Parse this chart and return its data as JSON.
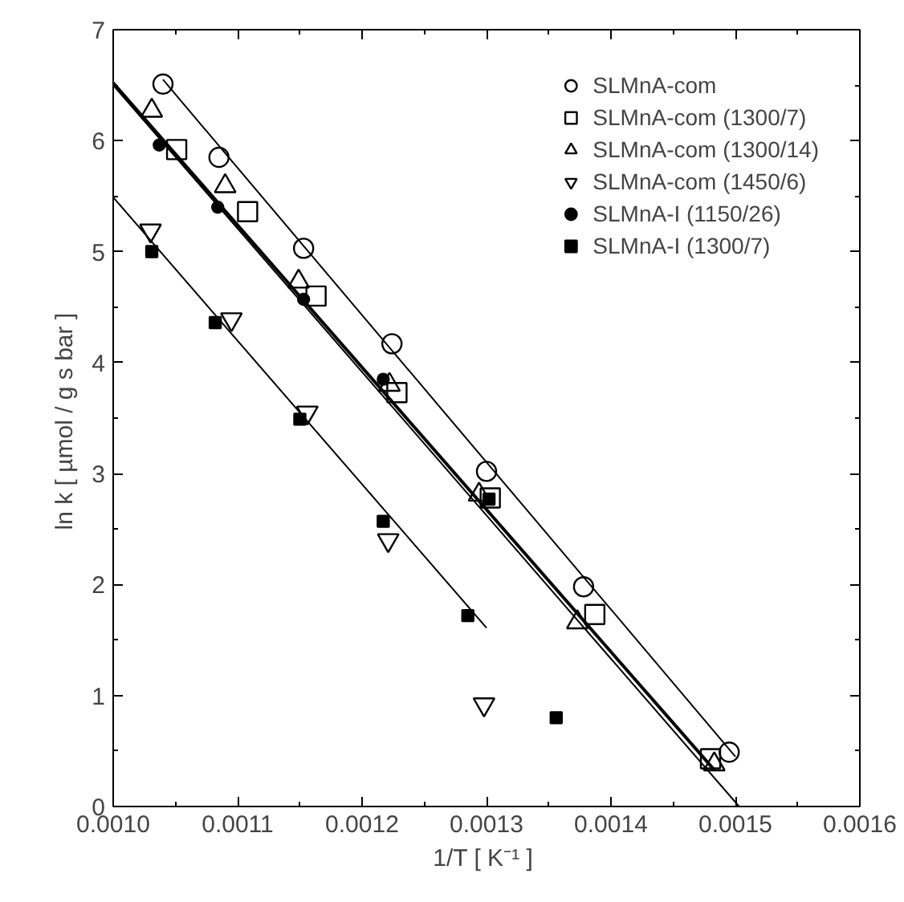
{
  "chart_data": {
    "type": "scatter",
    "xlabel": "1/T  [ K⁻¹ ]",
    "ylabel": "ln k  [ µmol / g s bar ]",
    "xlim": [
      0.001,
      0.0016
    ],
    "xticks": [
      {
        "value": 0.001,
        "label": "0.0010"
      },
      {
        "value": 0.0011,
        "label": "0.0011"
      },
      {
        "value": 0.0012,
        "label": "0.0012"
      },
      {
        "value": 0.0013,
        "label": "0.0013"
      },
      {
        "value": 0.0014,
        "label": "0.0014"
      },
      {
        "value": 0.0015,
        "label": "0.0015"
      },
      {
        "value": 0.0016,
        "label": "0.0016"
      }
    ],
    "ylim": [
      0,
      7
    ],
    "yticks": [
      0,
      1,
      2,
      3,
      4,
      5,
      6,
      7
    ],
    "grid": false,
    "legend": "top right",
    "series": [
      {
        "name": "SLMnA-com",
        "marker": "circle",
        "color": "#000000",
        "x": [
          0.00104,
          0.001085,
          0.001153,
          0.001224,
          0.0013,
          0.001378,
          0.001495
        ],
        "values": [
          6.51,
          5.85,
          5.03,
          4.17,
          3.02,
          1.98,
          0.49
        ]
      },
      {
        "name": "SLMnA-com (1300/7)",
        "marker": "square",
        "color": "#000000",
        "x": [
          0.001051,
          0.001108,
          0.001163,
          0.001228,
          0.001303,
          0.001387,
          0.00148
        ],
        "values": [
          5.92,
          5.36,
          4.6,
          3.73,
          2.78,
          1.73,
          0.43
        ]
      },
      {
        "name": "SLMnA-com (1300/14)",
        "marker": "triangle",
        "color": "#000000",
        "x": [
          0.001031,
          0.00109,
          0.001149,
          0.001222,
          0.001294,
          0.001373,
          0.001483
        ],
        "values": [
          6.27,
          5.59,
          4.73,
          3.8,
          2.81,
          1.66,
          0.38
        ]
      },
      {
        "name": "SLMnA-com (1450/6)",
        "marker": "triangle",
        "color": "#000000",
        "x": [
          0.00103,
          0.001095,
          0.001156,
          0.001221,
          0.001298
        ],
        "values": [
          5.19,
          4.39,
          3.55,
          2.4,
          0.92
        ]
      },
      {
        "name": "SLMnA-I (1150/26)",
        "marker": "circle",
        "color": "#000000",
        "x": [
          0.001037,
          0.001084,
          0.001153,
          0.001217
        ],
        "values": [
          5.96,
          5.4,
          4.57,
          3.85
        ]
      },
      {
        "name": "SLMnA-I (1300/7)",
        "marker": "square",
        "color": "#000000",
        "x": [
          0.001031,
          0.001082,
          0.00115,
          0.001217,
          0.001302,
          0.001285,
          0.001356
        ],
        "values": [
          5.0,
          4.36,
          3.49,
          2.57,
          2.77,
          1.72,
          0.8
        ]
      },
      {
        "type": "line",
        "color": "#000000",
        "x": [
          0.00104,
          0.0015
        ],
        "values": [
          6.55,
          0.45
        ]
      },
      {
        "type": "line",
        "color": "#000000",
        "x": [
          0.001,
          0.001483
        ],
        "values": [
          6.52,
          0.33
        ]
      },
      {
        "type": "line",
        "color": "#000000",
        "x": [
          0.001,
          0.001503
        ],
        "values": [
          6.5,
          0.0
        ]
      },
      {
        "type": "line",
        "color": "#000000",
        "x": [
          0.001,
          0.0013
        ],
        "values": [
          5.49,
          1.61
        ]
      }
    ]
  }
}
